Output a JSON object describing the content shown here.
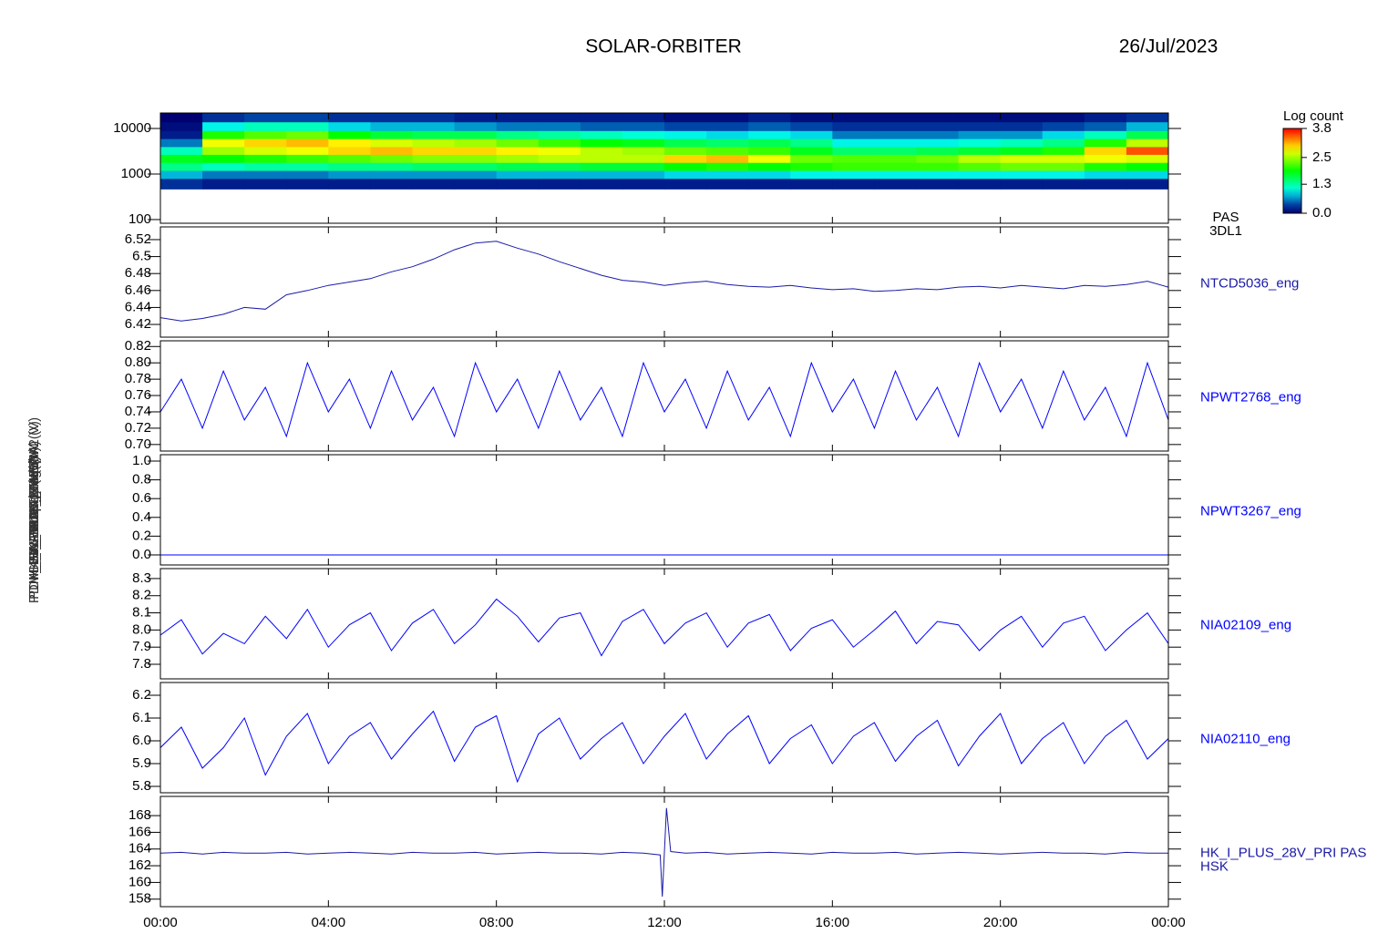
{
  "header": {
    "title": "SOLAR-ORBITER",
    "date": "26/Jul/2023"
  },
  "chart_data": [
    {
      "type": "heatmap",
      "name": "PAS",
      "instrument": "3DL1",
      "ylabel": "PAS Energy (eV)",
      "log": true,
      "ylim": [
        83,
        21900
      ],
      "yticks": [
        100,
        1000,
        10000
      ],
      "x_edges": [
        0,
        1,
        2,
        3,
        4,
        5,
        6,
        7,
        8,
        9,
        10,
        11,
        12,
        13,
        14,
        15,
        16,
        17,
        18,
        19,
        20,
        21,
        22,
        23,
        24
      ],
      "y_edges": [
        470,
        800,
        1200,
        1800,
        2700,
        4000,
        6000,
        9000,
        14000,
        21900
      ],
      "z": [
        [
          0.3,
          0.8,
          1.4,
          1.8,
          1.2,
          0.6,
          0.2,
          0.1,
          0.0
        ],
        [
          0.2,
          0.6,
          1.2,
          1.9,
          2.5,
          2.8,
          2.0,
          1.0,
          0.3
        ],
        [
          0.2,
          0.6,
          1.3,
          2.0,
          2.7,
          3.0,
          2.2,
          1.2,
          0.4
        ],
        [
          0.2,
          0.6,
          1.3,
          2.1,
          2.8,
          3.1,
          2.3,
          1.2,
          0.4
        ],
        [
          0.2,
          0.7,
          1.4,
          2.2,
          3.0,
          2.9,
          1.9,
          0.9,
          0.3
        ],
        [
          0.2,
          0.7,
          1.4,
          2.3,
          3.1,
          2.7,
          1.7,
          0.8,
          0.3
        ],
        [
          0.2,
          0.7,
          1.5,
          2.4,
          3.0,
          2.6,
          1.6,
          0.8,
          0.3
        ],
        [
          0.2,
          0.7,
          1.5,
          2.4,
          3.0,
          2.5,
          1.6,
          0.7,
          0.2
        ],
        [
          0.2,
          0.8,
          1.6,
          2.5,
          2.9,
          2.3,
          1.4,
          0.6,
          0.2
        ],
        [
          0.2,
          0.8,
          1.6,
          2.6,
          2.8,
          2.1,
          1.3,
          0.6,
          0.2
        ],
        [
          0.2,
          0.8,
          1.7,
          2.6,
          2.6,
          1.9,
          1.2,
          0.5,
          0.2
        ],
        [
          0.2,
          0.8,
          1.7,
          2.6,
          2.5,
          1.8,
          1.1,
          0.5,
          0.2
        ],
        [
          0.2,
          0.9,
          1.9,
          3.0,
          2.3,
          1.6,
          1.0,
          0.4,
          0.1
        ],
        [
          0.2,
          0.9,
          2.0,
          3.1,
          2.2,
          1.5,
          0.9,
          0.4,
          0.1
        ],
        [
          0.2,
          0.9,
          1.9,
          2.8,
          2.1,
          1.6,
          1.0,
          0.5,
          0.2
        ],
        [
          0.2,
          1.0,
          2.0,
          2.3,
          1.8,
          1.4,
          0.9,
          0.4,
          0.1
        ],
        [
          0.2,
          1.0,
          2.1,
          2.2,
          1.5,
          1.0,
          0.6,
          0.3,
          0.1
        ],
        [
          0.2,
          1.0,
          2.1,
          2.2,
          1.5,
          1.0,
          0.6,
          0.3,
          0.1
        ],
        [
          0.2,
          1.0,
          2.1,
          2.3,
          1.6,
          1.0,
          0.6,
          0.3,
          0.1
        ],
        [
          0.2,
          1.0,
          2.2,
          2.6,
          1.7,
          1.1,
          0.7,
          0.3,
          0.1
        ],
        [
          0.2,
          1.0,
          2.3,
          2.7,
          1.8,
          1.2,
          0.7,
          0.3,
          0.1
        ],
        [
          0.2,
          1.0,
          2.3,
          2.7,
          2.0,
          1.4,
          0.9,
          0.4,
          0.1
        ],
        [
          0.2,
          0.9,
          2.0,
          2.8,
          3.0,
          2.0,
          1.2,
          0.5,
          0.2
        ],
        [
          0.2,
          0.9,
          1.9,
          2.7,
          3.5,
          2.6,
          1.6,
          0.8,
          0.3
        ]
      ],
      "colorbar": {
        "title": "Log count",
        "zlim": [
          0,
          3.8
        ],
        "ticks": [
          {
            "value": 0,
            "label": "0.0"
          },
          1.3,
          2.5,
          3.8
        ]
      }
    },
    {
      "type": "line",
      "ylabel": "Box Temp (DegC)",
      "ylim": [
        6.405,
        6.535
      ],
      "yticks": [
        6.42,
        6.44,
        6.46,
        6.48,
        6.5,
        6.52
      ],
      "x": [
        0,
        0.5,
        1,
        1.5,
        2,
        2.5,
        3,
        3.5,
        4,
        4.5,
        5,
        5.5,
        6,
        6.5,
        7,
        7.5,
        8,
        8.5,
        9,
        9.5,
        10,
        10.5,
        11,
        11.5,
        12,
        12.5,
        13,
        13.5,
        14,
        14.5,
        15,
        15.5,
        16,
        16.5,
        17,
        17.5,
        18,
        18.5,
        19,
        19.5,
        20,
        20.5,
        21,
        21.5,
        22,
        22.5,
        23,
        23.5,
        24
      ],
      "series": [
        {
          "name": "NTCD5036_eng",
          "color": "#1a1aa8",
          "values": [
            6.428,
            6.424,
            6.427,
            6.432,
            6.44,
            6.438,
            6.455,
            6.46,
            6.466,
            6.47,
            6.474,
            6.482,
            6.488,
            6.497,
            6.508,
            6.516,
            6.518,
            6.51,
            6.503,
            6.494,
            6.486,
            6.478,
            6.472,
            6.47,
            6.466,
            6.469,
            6.471,
            6.467,
            6.465,
            6.464,
            6.466,
            6.463,
            6.461,
            6.462,
            6.459,
            6.46,
            6.462,
            6.461,
            6.464,
            6.465,
            6.463,
            6.466,
            6.464,
            6.462,
            6.466,
            6.465,
            6.467,
            6.471,
            6.464
          ]
        }
      ]
    },
    {
      "type": "line",
      "ylabel": "SWA-EAS-TEMP (V)",
      "ylim": [
        0.692,
        0.827
      ],
      "yticks": [
        {
          "value": 0.7,
          "label": "0.70"
        },
        0.72,
        0.74,
        0.76,
        0.78,
        {
          "value": 0.8,
          "label": "0.80"
        },
        0.82
      ],
      "x": [
        0,
        0.5,
        1,
        1.5,
        2,
        2.5,
        3,
        3.5,
        4,
        4.5,
        5,
        5.5,
        6,
        6.5,
        7,
        7.5,
        8,
        8.5,
        9,
        9.5,
        10,
        10.5,
        11,
        11.5,
        12,
        12.5,
        13,
        13.5,
        14,
        14.5,
        15,
        15.5,
        16,
        16.5,
        17,
        17.5,
        18,
        18.5,
        19,
        19.5,
        20,
        20.5,
        21,
        21.5,
        22,
        22.5,
        23,
        23.5,
        24
      ],
      "series": [
        {
          "name": "NPWT2768_eng",
          "color": "#0000ff",
          "values": [
            0.74,
            0.78,
            0.72,
            0.79,
            0.73,
            0.77,
            0.71,
            0.8,
            0.74,
            0.78,
            0.72,
            0.79,
            0.73,
            0.77,
            0.71,
            0.8,
            0.74,
            0.78,
            0.72,
            0.79,
            0.73,
            0.77,
            0.71,
            0.8,
            0.74,
            0.78,
            0.72,
            0.79,
            0.73,
            0.77,
            0.71,
            0.8,
            0.74,
            0.78,
            0.72,
            0.79,
            0.73,
            0.77,
            0.71,
            0.8,
            0.74,
            0.78,
            0.72,
            0.79,
            0.73,
            0.77,
            0.71,
            0.8,
            0.73
          ]
        }
      ]
    },
    {
      "type": "line",
      "ylabel": "SWA-EAS-HV (V)",
      "ylim": [
        -0.107,
        1.068
      ],
      "yticks": [
        {
          "value": 0,
          "label": "0.0"
        },
        0.2,
        0.4,
        0.6,
        0.8,
        {
          "value": 1,
          "label": "1.0"
        }
      ],
      "x": [
        0,
        0.5,
        1,
        1.5,
        2,
        2.5,
        3,
        3.5,
        4,
        4.5,
        5,
        5.5,
        6,
        6.5,
        7,
        7.5,
        8,
        8.5,
        9,
        9.5,
        10,
        10.5,
        11,
        11.5,
        12,
        12.5,
        13,
        13.5,
        14,
        14.5,
        15,
        15.5,
        16,
        16.5,
        17,
        17.5,
        18,
        18.5,
        19,
        19.5,
        20,
        20.5,
        21,
        21.5,
        22,
        22.5,
        23,
        23.5,
        24
      ],
      "series": [
        {
          "name": "NPWT3267_eng",
          "color": "#0000ff",
          "values": [
            0,
            0,
            0,
            0,
            0,
            0,
            0,
            0,
            0,
            0,
            0,
            0,
            0,
            0,
            0,
            0,
            0,
            0,
            0,
            0,
            0,
            0,
            0,
            0,
            0,
            0,
            0,
            0,
            0,
            0,
            0,
            0,
            0,
            0,
            0,
            0,
            0,
            0,
            0,
            0,
            0,
            0,
            0,
            0,
            0,
            0,
            0,
            0,
            0
          ]
        }
      ]
    },
    {
      "type": "line",
      "ylabel": "PDM_HK_IMON_THERM (V)",
      "ylim": [
        7.715,
        8.358
      ],
      "yticks": [
        7.8,
        7.9,
        {
          "value": 8,
          "label": "8.0"
        },
        8.1,
        8.2,
        8.3
      ],
      "x": [
        0,
        0.5,
        1,
        1.5,
        2,
        2.5,
        3,
        3.5,
        4,
        4.5,
        5,
        5.5,
        6,
        6.5,
        7,
        7.5,
        8,
        8.5,
        9,
        9.5,
        10,
        10.5,
        11,
        11.5,
        12,
        12.5,
        13,
        13.5,
        14,
        14.5,
        15,
        15.5,
        16,
        16.5,
        17,
        17.5,
        18,
        18.5,
        19,
        19.5,
        20,
        20.5,
        21,
        21.5,
        22,
        22.5,
        23,
        23.5,
        24
      ],
      "series": [
        {
          "name": "NIA02109_eng",
          "color": "#0000ff",
          "values": [
            7.97,
            8.06,
            7.86,
            7.98,
            7.92,
            8.08,
            7.95,
            8.12,
            7.9,
            8.03,
            8.1,
            7.88,
            8.04,
            8.12,
            7.92,
            8.03,
            8.18,
            8.08,
            7.93,
            8.07,
            8.1,
            7.85,
            8.05,
            8.12,
            7.92,
            8.04,
            8.1,
            7.9,
            8.04,
            8.09,
            7.88,
            8.01,
            8.06,
            7.9,
            8,
            8.11,
            7.92,
            8.05,
            8.03,
            7.88,
            8,
            8.08,
            7.9,
            8.04,
            8.08,
            7.88,
            8,
            8.1,
            7.92
          ]
        }
      ]
    },
    {
      "type": "line",
      "ylabel": "PDM_HK_IMON_THERM2 (V)",
      "ylim": [
        5.772,
        6.256
      ],
      "yticks": [
        5.8,
        5.9,
        {
          "value": 6,
          "label": "6.0"
        },
        6.1,
        6.2
      ],
      "x": [
        0,
        0.5,
        1,
        1.5,
        2,
        2.5,
        3,
        3.5,
        4,
        4.5,
        5,
        5.5,
        6,
        6.5,
        7,
        7.5,
        8,
        8.5,
        9,
        9.5,
        10,
        10.5,
        11,
        11.5,
        12,
        12.5,
        13,
        13.5,
        14,
        14.5,
        15,
        15.5,
        16,
        16.5,
        17,
        17.5,
        18,
        18.5,
        19,
        19.5,
        20,
        20.5,
        21,
        21.5,
        22,
        22.5,
        23,
        23.5,
        24
      ],
      "series": [
        {
          "name": "NIA02110_eng",
          "color": "#0000ff",
          "values": [
            5.97,
            6.06,
            5.88,
            5.97,
            6.1,
            5.85,
            6.02,
            6.12,
            5.9,
            6.02,
            6.08,
            5.92,
            6.03,
            6.13,
            5.91,
            6.06,
            6.11,
            5.82,
            6.03,
            6.1,
            5.92,
            6.01,
            6.08,
            5.9,
            6.02,
            6.12,
            5.92,
            6.03,
            6.11,
            5.9,
            6.01,
            6.07,
            5.9,
            6.02,
            6.08,
            5.91,
            6.02,
            6.09,
            5.89,
            6.02,
            6.12,
            5.9,
            6.01,
            6.08,
            5.9,
            6.02,
            6.09,
            5.92,
            6.01
          ]
        }
      ]
    },
    {
      "type": "line",
      "ylabel": "HK_I_PLUS_28V (mA)",
      "ylim": [
        157.1,
        170.3
      ],
      "yticks": [
        158,
        160,
        162,
        164,
        166,
        168
      ],
      "xlim": [
        0,
        24
      ],
      "xticks": [
        {
          "value": 0,
          "label": "00:00"
        },
        {
          "value": 4,
          "label": "04:00"
        },
        {
          "value": 8,
          "label": "08:00"
        },
        {
          "value": 12,
          "label": "12:00"
        },
        {
          "value": 16,
          "label": "16:00"
        },
        {
          "value": 20,
          "label": "20:00"
        },
        {
          "value": 24,
          "label": "00:00"
        }
      ],
      "x": [
        0,
        0.5,
        1,
        1.5,
        2,
        2.5,
        3,
        3.5,
        4,
        4.5,
        5,
        5.5,
        6,
        6.5,
        7,
        7.5,
        8,
        8.5,
        9,
        9.5,
        10,
        10.5,
        11,
        11.5,
        11.9,
        11.95,
        12.05,
        12.15,
        12.5,
        13,
        13.5,
        14,
        14.5,
        15,
        15.5,
        16,
        16.5,
        17,
        17.5,
        18,
        18.5,
        19,
        19.5,
        20,
        20.5,
        21,
        21.5,
        22,
        22.5,
        23,
        23.5,
        24
      ],
      "instrument": "HSK",
      "series": [
        {
          "name": "HK_I_PLUS_28V_PRI PAS",
          "color": "#1a1aa8",
          "values": [
            163.5,
            163.6,
            163.4,
            163.6,
            163.5,
            163.5,
            163.6,
            163.4,
            163.5,
            163.6,
            163.5,
            163.4,
            163.6,
            163.5,
            163.5,
            163.6,
            163.4,
            163.5,
            163.6,
            163.5,
            163.5,
            163.4,
            163.6,
            163.5,
            163.3,
            158.3,
            168.9,
            163.7,
            163.5,
            163.6,
            163.4,
            163.5,
            163.6,
            163.5,
            163.4,
            163.6,
            163.5,
            163.5,
            163.6,
            163.4,
            163.5,
            163.6,
            163.5,
            163.4,
            163.5,
            163.6,
            163.5,
            163.5,
            163.4,
            163.6,
            163.5,
            163.5
          ]
        }
      ]
    }
  ]
}
